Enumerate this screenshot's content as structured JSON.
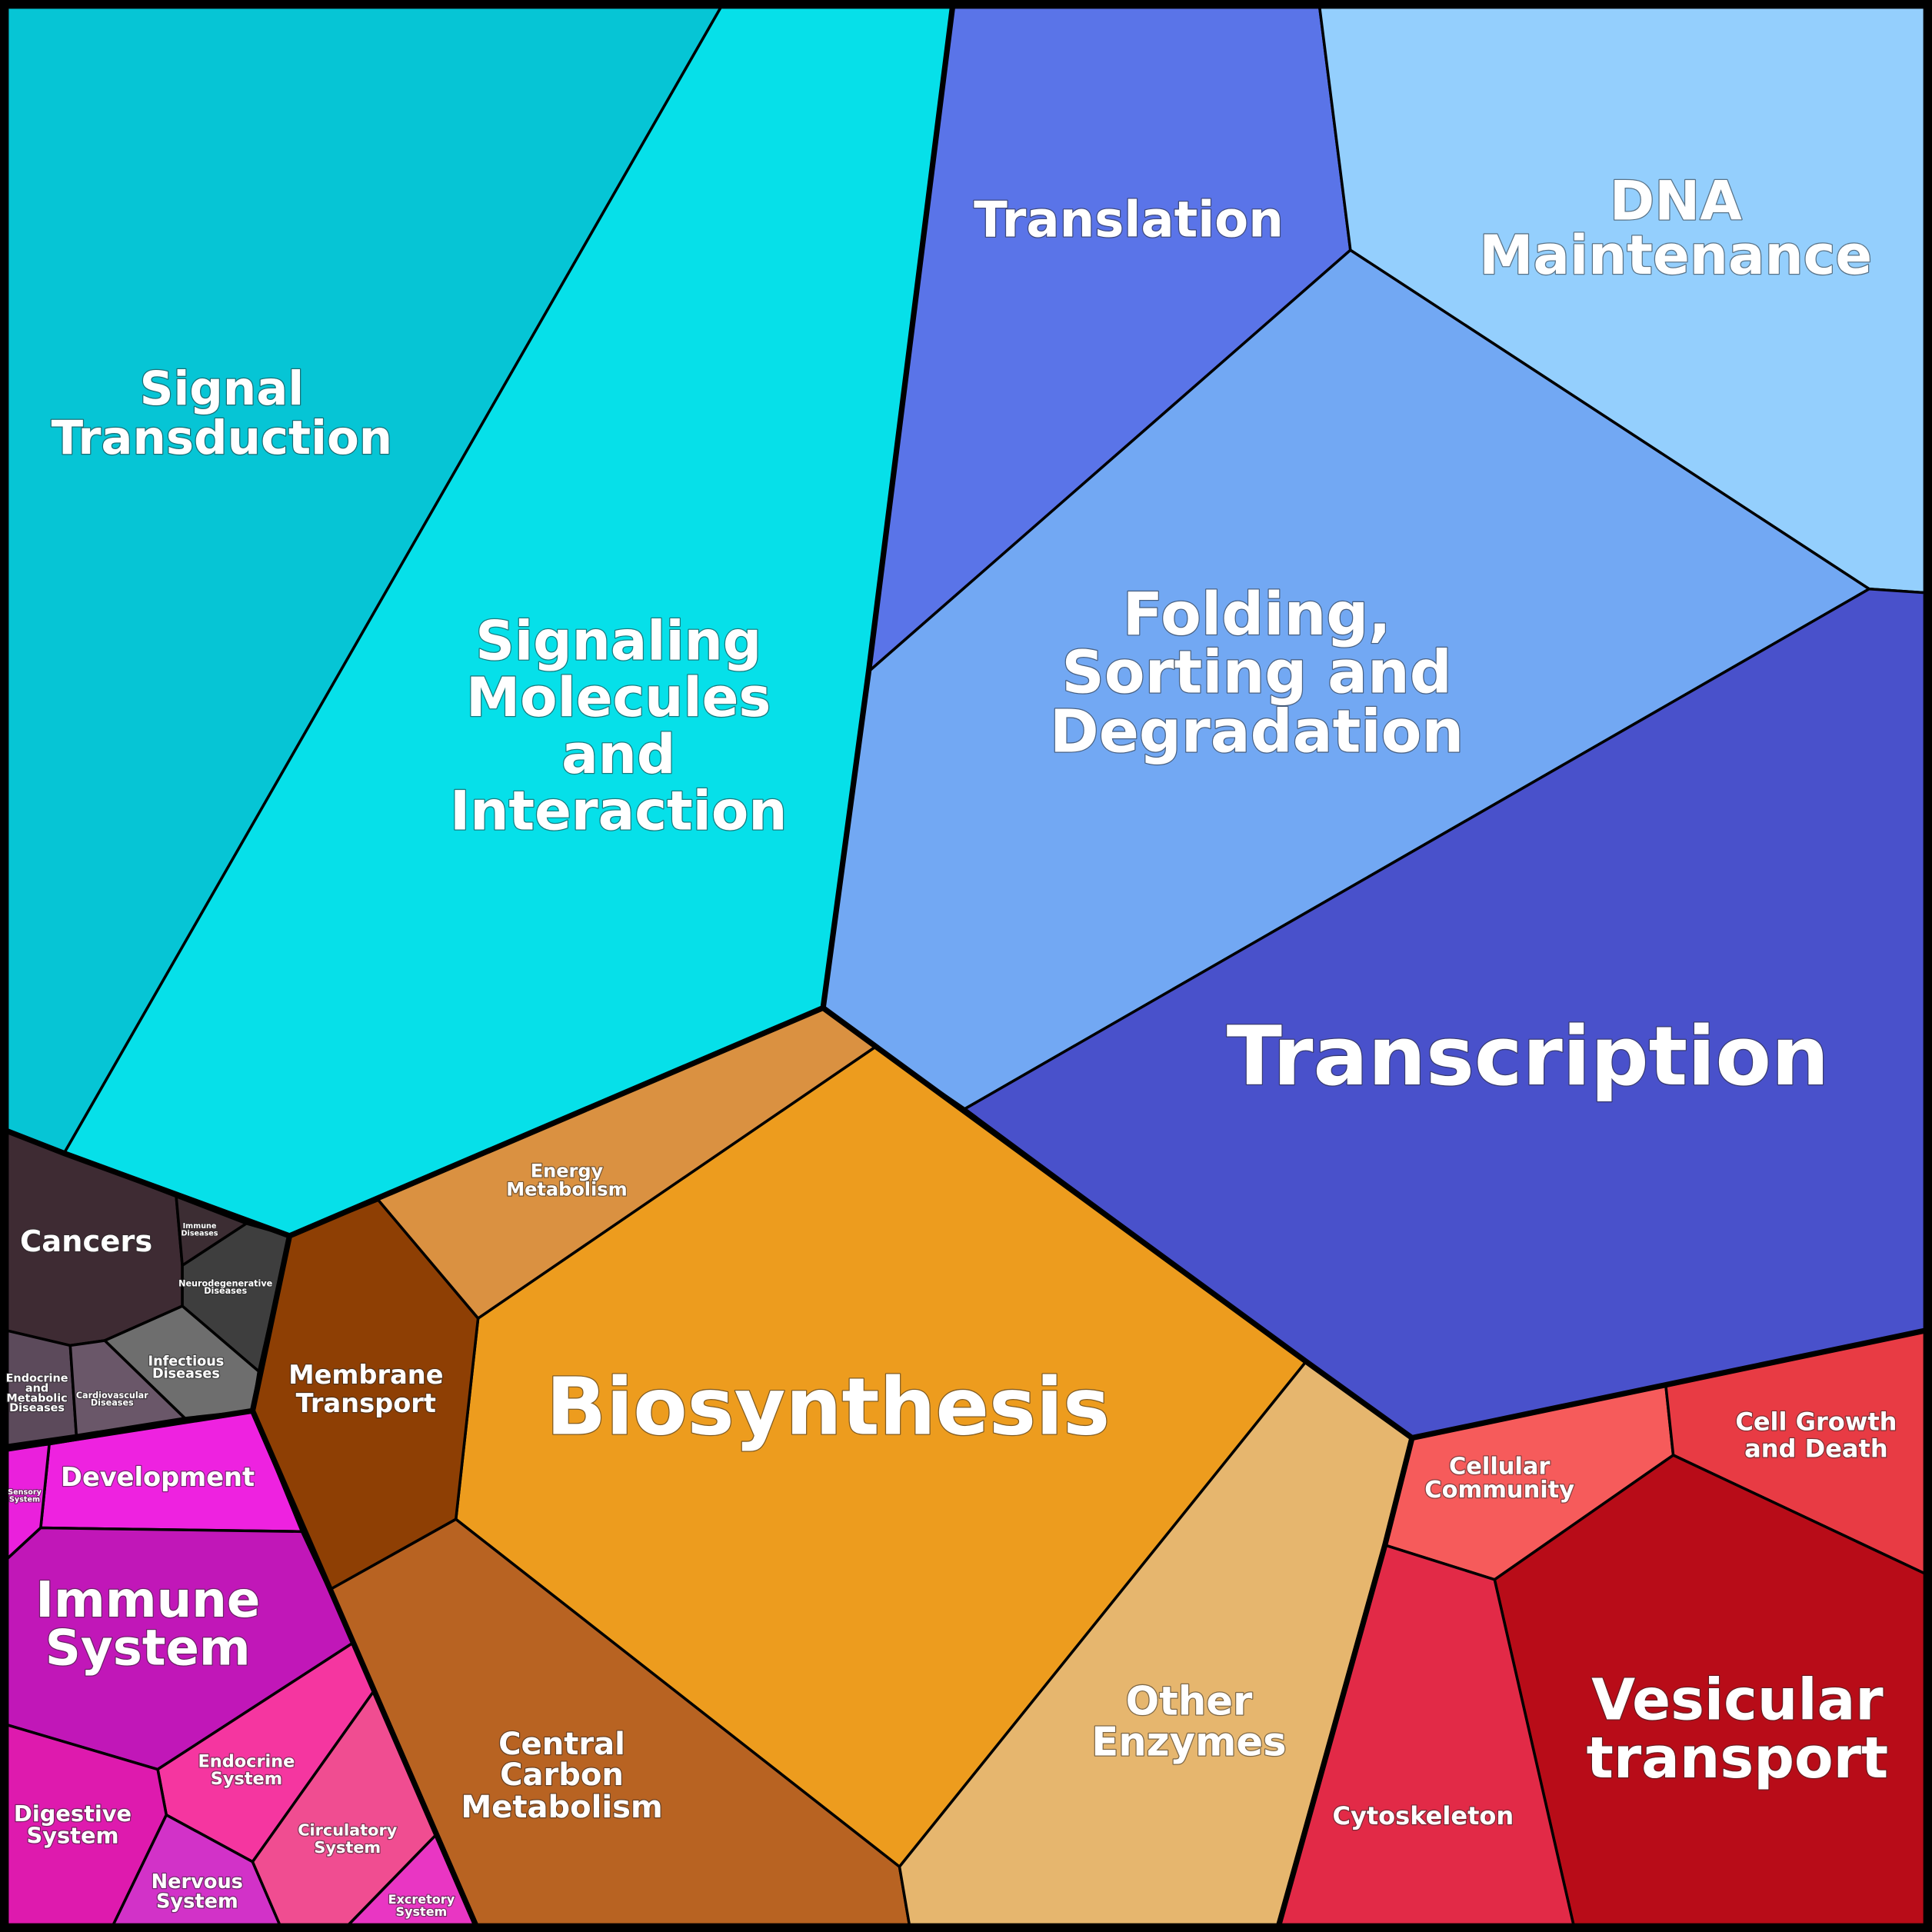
{
  "cells": [
    {
      "lines": [
        "Signal",
        "Transduction"
      ]
    },
    {
      "lines": [
        "Signaling",
        "Molecules",
        "and",
        "Interaction"
      ]
    },
    {
      "lines": [
        "Translation"
      ]
    },
    {
      "lines": [
        "DNA",
        "Maintenance"
      ]
    },
    {
      "lines": [
        "Folding,",
        "Sorting and",
        "Degradation"
      ]
    },
    {
      "lines": [
        "Transcription"
      ]
    },
    {
      "lines": [
        "Energy",
        "Metabolism"
      ]
    },
    {
      "lines": [
        "Biosynthesis"
      ]
    },
    {
      "lines": [
        "Membrane",
        "Transport"
      ]
    },
    {
      "lines": [
        "Central",
        "Carbon",
        "Metabolism"
      ]
    },
    {
      "lines": [
        "Other",
        "Enzymes"
      ]
    },
    {
      "lines": [
        "Cellular",
        "Community"
      ]
    },
    {
      "lines": [
        "Cell Growth",
        "and Death"
      ]
    },
    {
      "lines": [
        "Vesicular",
        "transport"
      ]
    },
    {
      "lines": [
        "Cytoskeleton"
      ]
    },
    {
      "lines": [
        "Cancers"
      ]
    },
    {
      "lines": [
        "Immune",
        "Diseases"
      ]
    },
    {
      "lines": [
        "Neurodegenerative",
        "Diseases"
      ]
    },
    {
      "lines": [
        "Infectious",
        "Diseases"
      ]
    },
    {
      "lines": [
        "Endocrine",
        "and",
        "Metabolic",
        "Diseases"
      ]
    },
    {
      "lines": [
        "Cardiovascular",
        "Diseases"
      ]
    },
    {
      "lines": [
        "Development"
      ]
    },
    {
      "lines": [
        "Sensory",
        "System"
      ]
    },
    {
      "lines": [
        "Immune",
        "System"
      ]
    },
    {
      "lines": [
        "Endocrine",
        "System"
      ]
    },
    {
      "lines": [
        "Digestive",
        "System"
      ]
    },
    {
      "lines": [
        "Nervous",
        "System"
      ]
    },
    {
      "lines": [
        "Circulatory",
        "System"
      ]
    },
    {
      "lines": [
        "Excretory",
        "System"
      ]
    }
  ]
}
